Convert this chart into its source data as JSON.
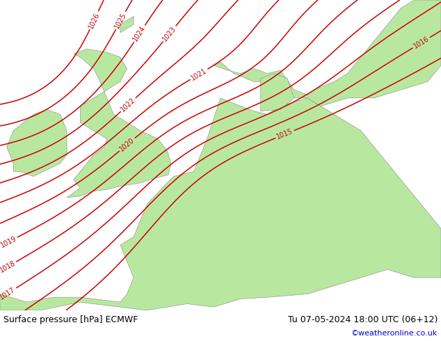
{
  "title_left": "Surface pressure [hPa] ECMWF",
  "title_right": "Tu 07-05-2024 18:00 UTC (06+12)",
  "credit": "©weatheronline.co.uk",
  "credit_color": "#0000cc",
  "land_color": "#b8e8a0",
  "sea_color": "#d8d8d8",
  "contour_color": "#cc0000",
  "coast_color": "#888888",
  "label_color": "#cc0000",
  "bottom_text_color": "#000000",
  "figsize": [
    6.34,
    4.9
  ],
  "dpi": 100,
  "pressure_levels": [
    1015,
    1016,
    1017,
    1018,
    1019,
    1020,
    1021,
    1022,
    1023,
    1024,
    1025,
    1026
  ],
  "xlim": [
    -11,
    22
  ],
  "ylim": [
    43,
    62
  ]
}
